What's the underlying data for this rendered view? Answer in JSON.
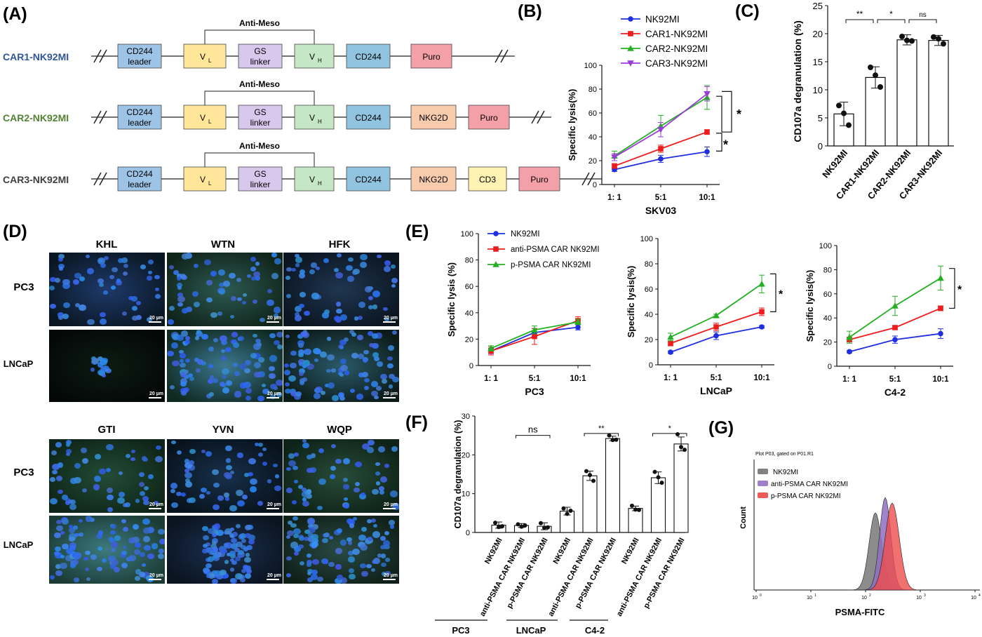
{
  "panelA": {
    "letter": "(A)",
    "constructs": [
      {
        "name": "CAR1-NK92MI",
        "color": "#2f5597",
        "segments": [
          {
            "id": "cd244leader",
            "line1": "CD244",
            "line2": "leader",
            "fill": "#9dc3e6"
          },
          {
            "id": "vl",
            "label": "V",
            "sub": "L",
            "fill": "#ffe699"
          },
          {
            "id": "gslinker",
            "line1": "GS",
            "line2": "linker",
            "fill": "#d9c8ee"
          },
          {
            "id": "vh",
            "label": "V",
            "sub": "H",
            "fill": "#c6e7c6"
          },
          {
            "id": "cd244",
            "label": "CD244",
            "fill": "#8fc3e0"
          },
          {
            "id": "puro",
            "label": "Puro",
            "fill": "#f4a0a8"
          }
        ]
      },
      {
        "name": "CAR2-NK92MI",
        "color": "#548235",
        "segments": [
          {
            "id": "cd244leader",
            "line1": "CD244",
            "line2": "leader",
            "fill": "#9dc3e6"
          },
          {
            "id": "vl",
            "label": "V",
            "sub": "L",
            "fill": "#ffe699"
          },
          {
            "id": "gslinker",
            "line1": "GS",
            "line2": "linker",
            "fill": "#d9c8ee"
          },
          {
            "id": "vh",
            "label": "V",
            "sub": "H",
            "fill": "#c6e7c6"
          },
          {
            "id": "cd244",
            "label": "CD244",
            "fill": "#8fc3e0"
          },
          {
            "id": "nkg2d",
            "label": "NKG2D",
            "fill": "#f8cbad"
          },
          {
            "id": "puro",
            "label": "Puro",
            "fill": "#f4a0a8"
          }
        ]
      },
      {
        "name": "CAR3-NK92MI",
        "color": "#404040",
        "segments": [
          {
            "id": "cd244leader",
            "line1": "CD244",
            "line2": "leader",
            "fill": "#9dc3e6"
          },
          {
            "id": "vl",
            "label": "V",
            "sub": "L",
            "fill": "#ffe699"
          },
          {
            "id": "gslinker",
            "line1": "GS",
            "line2": "linker",
            "fill": "#d9c8ee"
          },
          {
            "id": "vh",
            "label": "V",
            "sub": "H",
            "fill": "#c6e7c6"
          },
          {
            "id": "cd244",
            "label": "CD244",
            "fill": "#8fc3e0"
          },
          {
            "id": "nkg2d",
            "label": "NKG2D",
            "fill": "#f8cbad"
          },
          {
            "id": "cd3",
            "label": "CD3",
            "fill": "#fff2b3"
          },
          {
            "id": "puro",
            "label": "Puro",
            "fill": "#f4a0a8"
          }
        ]
      }
    ],
    "bracket_label": "Anti-Meso"
  },
  "panelB": {
    "letter": "(B)",
    "chart_data": {
      "type": "line",
      "xlabel": "SKV03",
      "ylabel": "Specific lysis(%)",
      "categories": [
        "1: 1",
        "5:1",
        "10:1"
      ],
      "ylim": [
        0,
        100
      ],
      "yticks": [
        0,
        20,
        40,
        60,
        80,
        100
      ],
      "legend": "top-left",
      "series": [
        {
          "name": "NK92MI",
          "color": "#1f2fe0",
          "marker": "circle",
          "values": [
            12.5,
            21.5,
            27.5
          ],
          "err": [
            1.5,
            3,
            4
          ]
        },
        {
          "name": "CAR1-NK92MI",
          "color": "#ee1c1c",
          "marker": "square",
          "values": [
            15.5,
            30,
            44
          ],
          "err": [
            2,
            3,
            2
          ]
        },
        {
          "name": "CAR2-NK92MI",
          "color": "#22b022",
          "marker": "triangle",
          "values": [
            24,
            49,
            73
          ],
          "err": [
            4,
            9,
            10
          ]
        },
        {
          "name": "CAR3-NK92MI",
          "color": "#9b3bd9",
          "marker": "triangle-down",
          "values": [
            23,
            46,
            76
          ],
          "err": [
            3,
            6,
            6
          ]
        }
      ],
      "annotations": [
        "*",
        "*"
      ]
    }
  },
  "panelC": {
    "letter": "(C)",
    "chart_data": {
      "type": "bar",
      "ylabel": "CD107a degranulation (%)",
      "categories": [
        "NK92MI",
        "CAR1-NK92MI",
        "CAR2-NK92MI",
        "CAR3-NK92MI"
      ],
      "values": [
        5.7,
        12.2,
        18.9,
        18.8
      ],
      "err": [
        2.1,
        1.9,
        0.9,
        0.9
      ],
      "points": [
        [
          7.2,
          5.8,
          3.7
        ],
        [
          14.0,
          12.6,
          10.5
        ],
        [
          19.5,
          18.8,
          18.7
        ],
        [
          19.4,
          19.1,
          18.2
        ]
      ],
      "ylim": [
        0,
        25
      ],
      "yticks": [
        0,
        5,
        10,
        15,
        20,
        25
      ],
      "significance": [
        "**",
        "*",
        "ns"
      ]
    }
  },
  "panelD": {
    "letter": "(D)",
    "top_columns": [
      "KHL",
      "WTN",
      "HFK"
    ],
    "bottom_columns": [
      "GTI",
      "YVN",
      "WQP"
    ],
    "rows": [
      "PC3",
      "LNCaP"
    ],
    "scale_label": "20 µm"
  },
  "panelE": {
    "letter": "(E)",
    "legend": [
      "NK92MI",
      "anti-PSMA CAR NK92MI",
      "p-PSMA CAR NK92MI"
    ],
    "charts": [
      {
        "type": "line",
        "xlabel": "PC3",
        "ylabel": "Specific lysis (%)",
        "categories": [
          "1: 1",
          "5:1",
          "10:1"
        ],
        "ylim": [
          0,
          100
        ],
        "yticks": [
          0,
          20,
          40,
          60,
          80,
          100
        ],
        "series": [
          {
            "name": "NK92MI",
            "color": "#1f2fe0",
            "marker": "circle",
            "values": [
              11,
              25,
              29
            ],
            "err": [
              2,
              3,
              2
            ]
          },
          {
            "name": "anti-PSMA CAR NK92MI",
            "color": "#ee1c1c",
            "marker": "square",
            "values": [
              11,
              22,
              34
            ],
            "err": [
              3,
              6,
              3
            ]
          },
          {
            "name": "p-PSMA CAR NK92MI",
            "color": "#22b022",
            "marker": "triangle",
            "values": [
              13,
              27,
              33
            ],
            "err": [
              2,
              3,
              2
            ]
          }
        ],
        "annotation": ""
      },
      {
        "type": "line",
        "xlabel": "LNCaP",
        "ylabel": "Specific lysis(%)",
        "categories": [
          "1: 1",
          "5:1",
          "10:1"
        ],
        "ylim": [
          0,
          100
        ],
        "yticks": [
          0,
          20,
          40,
          60,
          80,
          100
        ],
        "series": [
          {
            "name": "NK92MI",
            "color": "#1f2fe0",
            "marker": "circle",
            "values": [
              10,
              23,
              30
            ],
            "err": [
              1,
              3,
              1
            ]
          },
          {
            "name": "anti-PSMA CAR NK92MI",
            "color": "#ee1c1c",
            "marker": "square",
            "values": [
              17,
              30,
              42
            ],
            "err": [
              2,
              3,
              3
            ]
          },
          {
            "name": "p-PSMA CAR NK92MI",
            "color": "#22b022",
            "marker": "triangle",
            "values": [
              22,
              39,
              64
            ],
            "err": [
              3,
              1,
              7
            ]
          }
        ],
        "annotation": "*"
      },
      {
        "type": "line",
        "xlabel": "C4-2",
        "ylabel": "Specific lysis(%)",
        "categories": [
          "1: 1",
          "5:1",
          "10:1"
        ],
        "ylim": [
          0,
          100
        ],
        "yticks": [
          0,
          20,
          40,
          60,
          80,
          100
        ],
        "series": [
          {
            "name": "NK92MI",
            "color": "#1f2fe0",
            "marker": "circle",
            "values": [
              12,
              22,
              27
            ],
            "err": [
              1,
              3,
              4
            ]
          },
          {
            "name": "anti-PSMA CAR NK92MI",
            "color": "#ee1c1c",
            "marker": "square",
            "values": [
              22,
              32,
              48
            ],
            "err": [
              2,
              1,
              2
            ]
          },
          {
            "name": "p-PSMA CAR NK92MI",
            "color": "#22b022",
            "marker": "triangle",
            "values": [
              24,
              50,
              73
            ],
            "err": [
              5,
              8,
              10
            ]
          }
        ],
        "annotation": "*"
      }
    ]
  },
  "panelF": {
    "letter": "(F)",
    "chart_data": {
      "type": "bar",
      "ylabel": "CD107a degranulation (%)",
      "categories": [
        "NK92MI",
        "anti-PSMA CAR NK92MI",
        "p-PSMA CAR NK92MI",
        "NK92MI",
        "anti-PSMA CAR NK92MI",
        "p-PSMA CAR NK92MI",
        "NK92MI",
        "anti-PSMA CAR NK92MI",
        "p-PSMA CAR NK92MI"
      ],
      "groups": [
        "PC3",
        "LNCaP",
        "C4-2"
      ],
      "values": [
        1.9,
        1.8,
        1.6,
        5.5,
        14.6,
        24.2,
        6.2,
        14.1,
        22.8
      ],
      "err": [
        0.8,
        0.5,
        0.9,
        1.0,
        1.2,
        0.6,
        0.6,
        1.5,
        1.8
      ],
      "points": [
        [
          2.5,
          1.4,
          1.6
        ],
        [
          2.1,
          1.5,
          1.8
        ],
        [
          2.4,
          1.2,
          1.3
        ],
        [
          6.2,
          4.8,
          5.6
        ],
        [
          15.8,
          14.8,
          13.3
        ],
        [
          25.0,
          23.8,
          23.9
        ],
        [
          6.9,
          5.9,
          5.8
        ],
        [
          15.6,
          14.2,
          12.8
        ],
        [
          25.3,
          22.0,
          21.3
        ]
      ],
      "ylim": [
        0,
        30
      ],
      "yticks": [
        0,
        10,
        20,
        30
      ],
      "significance": [
        "ns",
        "**",
        "*"
      ]
    }
  },
  "panelG": {
    "letter": "(G)",
    "plot_title": "Plot P03, gated on P01.R1",
    "xlabel": "PSMA-FITC",
    "ylabel": "Count",
    "xticks": [
      "10",
      "10",
      "10",
      "10",
      "10"
    ],
    "xtick_exp": [
      "0",
      "1",
      "2",
      "3",
      "4"
    ],
    "legend": [
      {
        "name": "NK92MI",
        "color": "#808080"
      },
      {
        "name": "anti-PSMA CAR NK92MI",
        "color": "#9e7fc8"
      },
      {
        "name": "p-PSMA CAR NK92MI",
        "color": "#ee5a5a"
      }
    ]
  }
}
